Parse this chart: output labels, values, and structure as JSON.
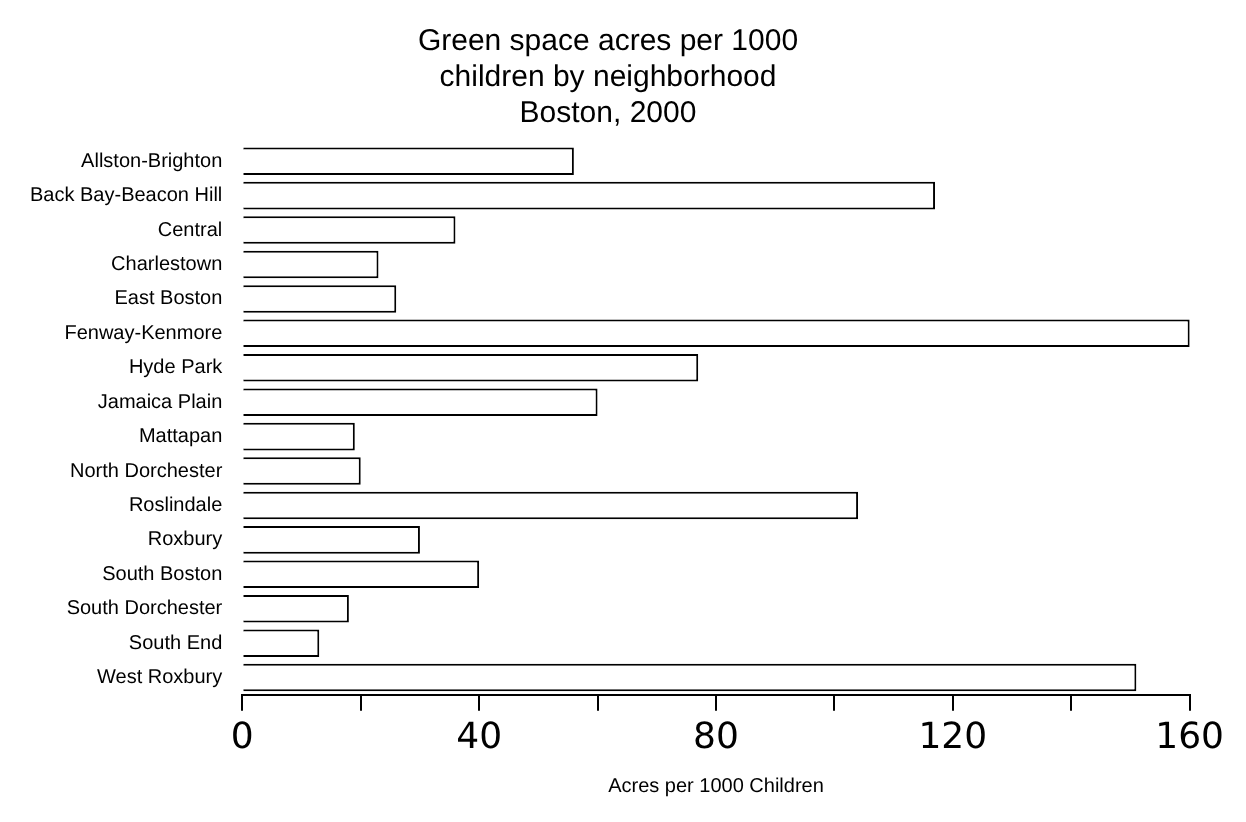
{
  "chart_data": {
    "type": "bar",
    "orientation": "horizontal",
    "title": [
      "Green space acres per 1000",
      "children by neighborhood",
      "Boston, 2000"
    ],
    "xlabel": "Acres per 1000 Children",
    "categories": [
      "Allston-Brighton",
      "Back Bay-Beacon Hill",
      "Central",
      "Charlestown",
      "East Boston",
      "Fenway-Kenmore",
      "Hyde Park",
      "Jamaica Plain",
      "Mattapan",
      "North Dorchester",
      "Roslindale",
      "Roxbury",
      "South Boston",
      "South Dorchester",
      "South End",
      "West Roxbury"
    ],
    "values": [
      56,
      117,
      36,
      23,
      26,
      160,
      77,
      60,
      19,
      20,
      104,
      30,
      40,
      18,
      13,
      151
    ],
    "color": "#ffffff",
    "xlim": [
      0,
      160
    ],
    "xticks": [
      0,
      {
        "value": 20,
        "label": null
      },
      40,
      {
        "value": 60,
        "label": null
      },
      80,
      {
        "value": 100,
        "label": null
      },
      120,
      {
        "value": 140,
        "label": null
      },
      160
    ],
    "grid": false,
    "legend": false
  }
}
